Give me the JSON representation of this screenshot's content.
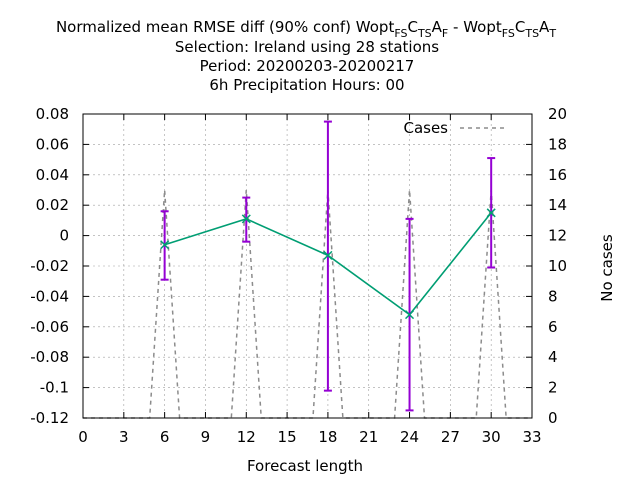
{
  "chart_data": {
    "type": "line",
    "title_lines": [
      "Normalized mean RMSE diff (90% conf) Wopt",
      "Selection: Ireland using    28 stations",
      "Period: 20200203-20200217",
      "6h Precipitation   Hours:  00"
    ],
    "title_tail": {
      "sub1": "FS",
      "c1": "C",
      "sub2": "TS",
      "a1": "A",
      "sub3": "F",
      "sep": " - Wopt",
      "sub4": "FS",
      "c2": "C",
      "sub5": "TS",
      "a2": "A",
      "sub6": "T"
    },
    "xlabel": "Forecast length",
    "ylabel": "",
    "y2label": "No cases",
    "xlim": [
      0,
      33
    ],
    "ylim": [
      -0.12,
      0.08
    ],
    "y2lim": [
      0,
      20
    ],
    "xticks": [
      0,
      3,
      6,
      9,
      12,
      15,
      18,
      21,
      24,
      27,
      30,
      33
    ],
    "yticks": [
      -0.12,
      -0.1,
      -0.08,
      -0.06,
      -0.04,
      -0.02,
      0,
      0.02,
      0.04,
      0.06,
      0.08
    ],
    "ytick_labels": [
      "-0.12",
      "-0.1",
      "-0.08",
      "-0.06",
      "-0.04",
      "-0.02",
      "0",
      "0.02",
      "0.04",
      "0.06",
      "0.08"
    ],
    "y2ticks": [
      0,
      2,
      4,
      6,
      8,
      10,
      12,
      14,
      16,
      18,
      20
    ],
    "grid": true,
    "legend_position": "top-right",
    "series": [
      {
        "x": [
          6,
          12,
          18,
          24,
          30
        ],
        "values": [
          -0.006,
          0.011,
          -0.013,
          -0.052,
          0.015
        ],
        "err_low": [
          -0.029,
          -0.004,
          -0.102,
          -0.115,
          -0.021
        ],
        "err_high": [
          0.016,
          0.025,
          0.075,
          0.011,
          0.051
        ],
        "color": "#009e73",
        "errorbar_color": "#9400d3"
      }
    ],
    "cases": {
      "name": "Cases",
      "x": [
        4.9,
        6,
        7.1,
        10.9,
        12,
        13.1,
        16.9,
        18,
        19.1,
        22.9,
        24,
        25.1,
        28.9,
        30,
        31.1
      ],
      "values": [
        0,
        15,
        0,
        0,
        15,
        0,
        0,
        15,
        0,
        0,
        15,
        0,
        0,
        15,
        0
      ],
      "color": "#8c8c8c"
    }
  }
}
